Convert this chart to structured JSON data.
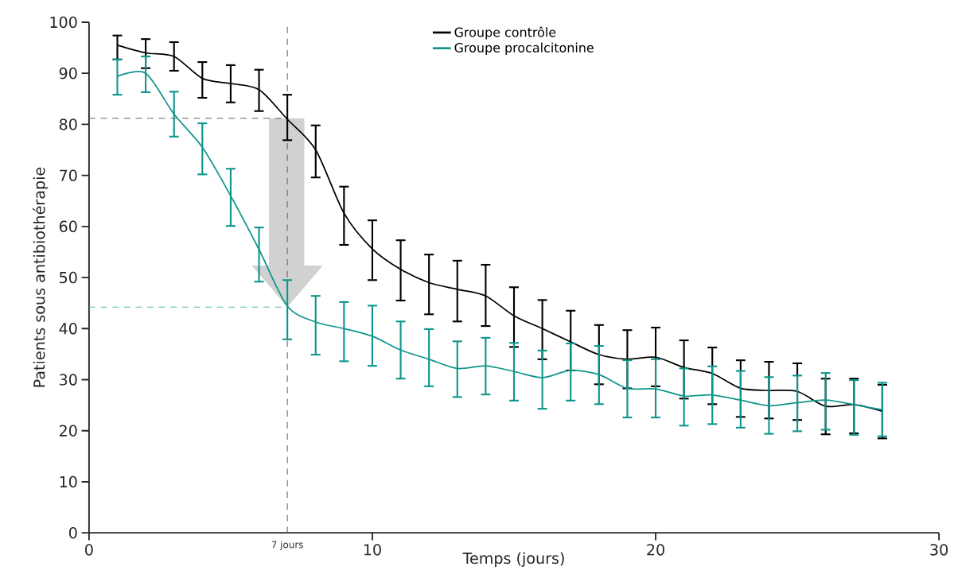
{
  "chart_data": {
    "type": "line",
    "xlabel": "Temps (jours)",
    "ylabel": "Patients sous antibiothérapie",
    "x": [
      1,
      2,
      3,
      4,
      5,
      6,
      7,
      8,
      9,
      10,
      11,
      12,
      13,
      14,
      15,
      16,
      17,
      18,
      19,
      20,
      21,
      22,
      23,
      24,
      25,
      26,
      27,
      28
    ],
    "series": [
      {
        "name": "Groupe contrôle",
        "color": "#000000",
        "values": [
          95.5,
          94,
          93.3,
          89,
          88,
          86.8,
          81,
          75,
          62.6,
          55.6,
          51.6,
          49,
          47.7,
          46.4,
          42.5,
          40,
          37.4,
          34.9,
          34,
          34.4,
          32.4,
          31.2,
          28.3,
          27.9,
          27.7,
          24.8,
          25.1,
          23.8
        ],
        "errors": [
          [
            92.7,
            97.4
          ],
          [
            91,
            96.7
          ],
          [
            90.5,
            96.1
          ],
          [
            85.2,
            92.2
          ],
          [
            84.3,
            91.6
          ],
          [
            82.6,
            90.7
          ],
          [
            76.9,
            85.8
          ],
          [
            69.6,
            79.8
          ],
          [
            56.4,
            67.8
          ],
          [
            49.5,
            61.2
          ],
          [
            45.5,
            57.3
          ],
          [
            42.8,
            54.5
          ],
          [
            41.4,
            53.3
          ],
          [
            40.5,
            52.5
          ],
          [
            36.4,
            48.1
          ],
          [
            34,
            45.6
          ],
          [
            31.8,
            43.5
          ],
          [
            29.1,
            40.7
          ],
          [
            28.3,
            39.7
          ],
          [
            28.7,
            40.2
          ],
          [
            26.3,
            37.7
          ],
          [
            25.2,
            36.3
          ],
          [
            22.7,
            33.8
          ],
          [
            22.4,
            33.5
          ],
          [
            22.1,
            33.2
          ],
          [
            19.3,
            30.2
          ],
          [
            19.5,
            30.2
          ],
          [
            18.5,
            29
          ]
        ]
      },
      {
        "name": "Groupe procalcitonine",
        "color": "#0e968c",
        "values": [
          89.4,
          90,
          82,
          75.5,
          66,
          55.5,
          44.4,
          41.3,
          40,
          38.5,
          35.8,
          34,
          32.2,
          32.7,
          31.6,
          30.4,
          31.8,
          31,
          28.3,
          28.2,
          26.8,
          27,
          26,
          24.9,
          25.5,
          26,
          25.1,
          24.1
        ],
        "errors": [
          [
            85.8,
            92.7
          ],
          [
            86.3,
            93.3
          ],
          [
            77.6,
            86.4
          ],
          [
            70.2,
            80.2
          ],
          [
            60.1,
            71.3
          ],
          [
            49.2,
            59.8
          ],
          [
            37.9,
            49.5
          ],
          [
            34.9,
            46.4
          ],
          [
            33.6,
            45.2
          ],
          [
            32.7,
            44.5
          ],
          [
            30.2,
            41.4
          ],
          [
            28.7,
            39.9
          ],
          [
            26.6,
            37.5
          ],
          [
            27.1,
            38.2
          ],
          [
            25.9,
            37.2
          ],
          [
            24.3,
            35.7
          ],
          [
            25.9,
            37.1
          ],
          [
            25.2,
            36.6
          ],
          [
            22.6,
            33.8
          ],
          [
            22.6,
            34
          ],
          [
            21,
            32.2
          ],
          [
            21.3,
            32.6
          ],
          [
            20.6,
            31.7
          ],
          [
            19.4,
            30.5
          ],
          [
            19.9,
            30.8
          ],
          [
            20.2,
            31.3
          ],
          [
            19.2,
            29.9
          ],
          [
            18.9,
            29.4
          ]
        ]
      }
    ],
    "xlim": [
      0,
      30
    ],
    "xticks": [
      0,
      10,
      20,
      30
    ],
    "ylim": [
      0,
      100
    ],
    "yticks": [
      0,
      10,
      20,
      30,
      40,
      50,
      60,
      70,
      80,
      90,
      100
    ],
    "ref_lines": [
      {
        "axis": "x",
        "value": 7,
        "label": "7 jours",
        "color": "#666666",
        "line_style": "dashed"
      },
      {
        "axis": "y",
        "value": 81.2,
        "color": "#666666",
        "line_style": "dashed"
      },
      {
        "axis": "y",
        "value": 44.2,
        "color": "#4fb8b0",
        "line_style": "dashed"
      }
    ],
    "legend": "top",
    "grid": false,
    "marker": "none",
    "line_style": "solid"
  }
}
